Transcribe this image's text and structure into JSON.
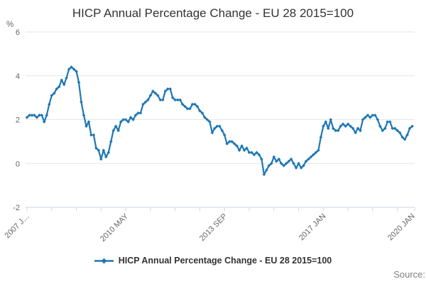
{
  "chart": {
    "title": "HICP Annual Percentage Change - EU 28 2015=100",
    "legend_label": "HICP Annual Percentage Change - EU 28 2015=100",
    "source_label": "Source:",
    "y_axis_unit": "%"
  },
  "chart_data": {
    "type": "line",
    "title": "HICP Annual Percentage Change - EU 28 2015=100",
    "series": [
      {
        "name": "HICP Annual Percentage Change - EU 28 2015=100",
        "start": "2007 JAN",
        "end": "2020 JAN",
        "frequency": "monthly",
        "values": [
          2.1,
          2.2,
          2.2,
          2.2,
          2.1,
          2.2,
          2.2,
          1.9,
          2.2,
          2.7,
          3.1,
          3.2,
          3.4,
          3.5,
          3.8,
          3.6,
          3.9,
          4.3,
          4.4,
          4.3,
          4.2,
          3.7,
          2.8,
          2.2,
          1.7,
          1.9,
          1.3,
          1.3,
          0.7,
          0.6,
          0.2,
          0.6,
          0.3,
          0.5,
          1.0,
          1.5,
          1.7,
          1.5,
          1.9,
          2.0,
          2.0,
          1.9,
          2.1,
          2.0,
          2.2,
          2.3,
          2.3,
          2.7,
          2.8,
          2.9,
          3.1,
          3.3,
          3.2,
          3.1,
          2.9,
          2.9,
          3.3,
          3.4,
          3.4,
          3.0,
          2.9,
          2.9,
          2.9,
          2.7,
          2.6,
          2.5,
          2.5,
          2.7,
          2.7,
          2.6,
          2.4,
          2.3,
          2.1,
          2.0,
          1.9,
          1.4,
          1.6,
          1.7,
          1.7,
          1.5,
          1.3,
          0.9,
          1.0,
          1.0,
          0.9,
          0.8,
          0.6,
          0.8,
          0.6,
          0.7,
          0.5,
          0.5,
          0.4,
          0.5,
          0.4,
          0.2,
          -0.5,
          -0.3,
          -0.1,
          0.0,
          0.3,
          0.1,
          0.2,
          0.0,
          -0.1,
          0.0,
          0.1,
          0.2,
          0.0,
          -0.2,
          0.0,
          -0.2,
          -0.1,
          0.1,
          0.2,
          0.3,
          0.4,
          0.5,
          0.6,
          1.2,
          1.7,
          1.9,
          1.6,
          2.0,
          1.6,
          1.5,
          1.5,
          1.7,
          1.8,
          1.7,
          1.8,
          1.7,
          1.6,
          1.4,
          1.6,
          1.5,
          2.0,
          2.1,
          2.2,
          2.1,
          2.2,
          2.2,
          2.0,
          1.7,
          1.5,
          1.6,
          1.9,
          1.9,
          1.6,
          1.6,
          1.5,
          1.4,
          1.2,
          1.1,
          1.3,
          1.6,
          1.7
        ]
      }
    ],
    "ylabel": "%",
    "xlabel": "",
    "ylim": [
      -2,
      6
    ],
    "y_ticks": [
      6,
      4,
      2,
      0,
      -2
    ],
    "x_tick_labels": [
      {
        "month_index": 0,
        "label": "2007 J…"
      },
      {
        "month_index": 40,
        "label": "2010 MAY"
      },
      {
        "month_index": 80,
        "label": "2013 SEP"
      },
      {
        "month_index": 120,
        "label": "2017 JAN"
      },
      {
        "month_index": 156,
        "label": "2020 JAN"
      }
    ],
    "x_minor_tick_month_indices": [
      0,
      10,
      20,
      30,
      40,
      50,
      60,
      70,
      80,
      90,
      100,
      110,
      120,
      130,
      140,
      150,
      157
    ],
    "grid": "horizontal-only",
    "legend_position": "bottom-center",
    "colors": {
      "line": "#1f77b4",
      "grid": "#e6e6e6",
      "axis": "#ccd6eb",
      "tick_label": "#666666",
      "title": "#333333"
    }
  }
}
